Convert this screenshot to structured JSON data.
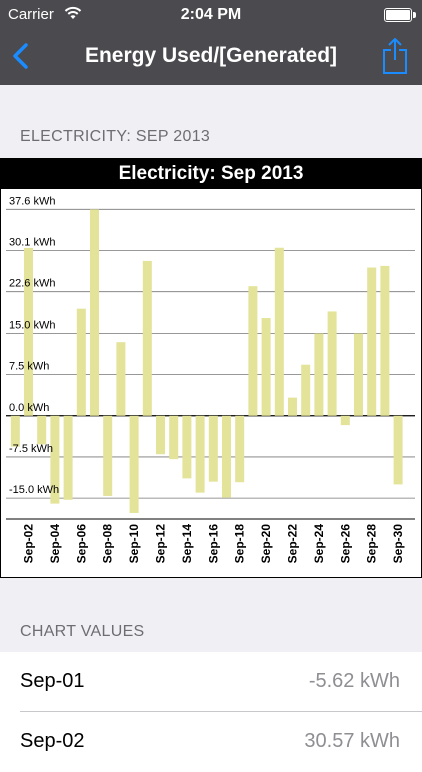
{
  "status_bar": {
    "carrier": "Carrier",
    "time": "2:04 PM"
  },
  "nav": {
    "title": "Energy Used/[Generated]"
  },
  "sections": {
    "chart_header": "ELECTRICITY: SEP 2013",
    "values_header": "CHART VALUES"
  },
  "chart_data": {
    "type": "bar",
    "title": "Electricity: Sep 2013",
    "xlabel": "",
    "ylabel": "",
    "unit": "kWh",
    "ylim": [
      -18.8,
      41.3
    ],
    "yticks": [
      -15.0,
      -7.5,
      0.0,
      7.5,
      15.0,
      22.6,
      30.1,
      37.6
    ],
    "ytick_labels": [
      "-15.0 kWh",
      "-7.5 kWh",
      "0.0 kWh",
      "7.5 kWh",
      "15.0 kWh",
      "22.6 kWh",
      "30.1 kWh",
      "37.6 kWh"
    ],
    "categories": [
      "Sep-01",
      "Sep-02",
      "Sep-03",
      "Sep-04",
      "Sep-05",
      "Sep-06",
      "Sep-07",
      "Sep-08",
      "Sep-09",
      "Sep-10",
      "Sep-11",
      "Sep-12",
      "Sep-13",
      "Sep-14",
      "Sep-15",
      "Sep-16",
      "Sep-17",
      "Sep-18",
      "Sep-19",
      "Sep-20",
      "Sep-21",
      "Sep-22",
      "Sep-23",
      "Sep-24",
      "Sep-25",
      "Sep-26",
      "Sep-27",
      "Sep-28",
      "Sep-29",
      "Sep-30"
    ],
    "shown_tick_labels": [
      "Sep-02",
      "Sep-04",
      "Sep-06",
      "Sep-08",
      "Sep-10",
      "Sep-12",
      "Sep-14",
      "Sep-16",
      "Sep-18",
      "Sep-20",
      "Sep-22",
      "Sep-24",
      "Sep-26",
      "Sep-28",
      "Sep-30"
    ],
    "values": [
      -5.62,
      30.57,
      -5.2,
      -16.0,
      -15.3,
      19.5,
      37.6,
      -14.6,
      13.4,
      -17.7,
      28.2,
      -7.0,
      -7.9,
      -11.4,
      -14.0,
      -12.0,
      -14.9,
      -12.1,
      23.6,
      17.8,
      30.6,
      3.3,
      9.3,
      15.0,
      19.0,
      -1.7,
      15.0,
      27.0,
      27.3,
      -12.5
    ],
    "bar_color": "#e3e39a",
    "grid": true
  },
  "chart_values": [
    {
      "date": "Sep-01",
      "value": "-5.62 kWh"
    },
    {
      "date": "Sep-02",
      "value": "30.57 kWh"
    }
  ]
}
